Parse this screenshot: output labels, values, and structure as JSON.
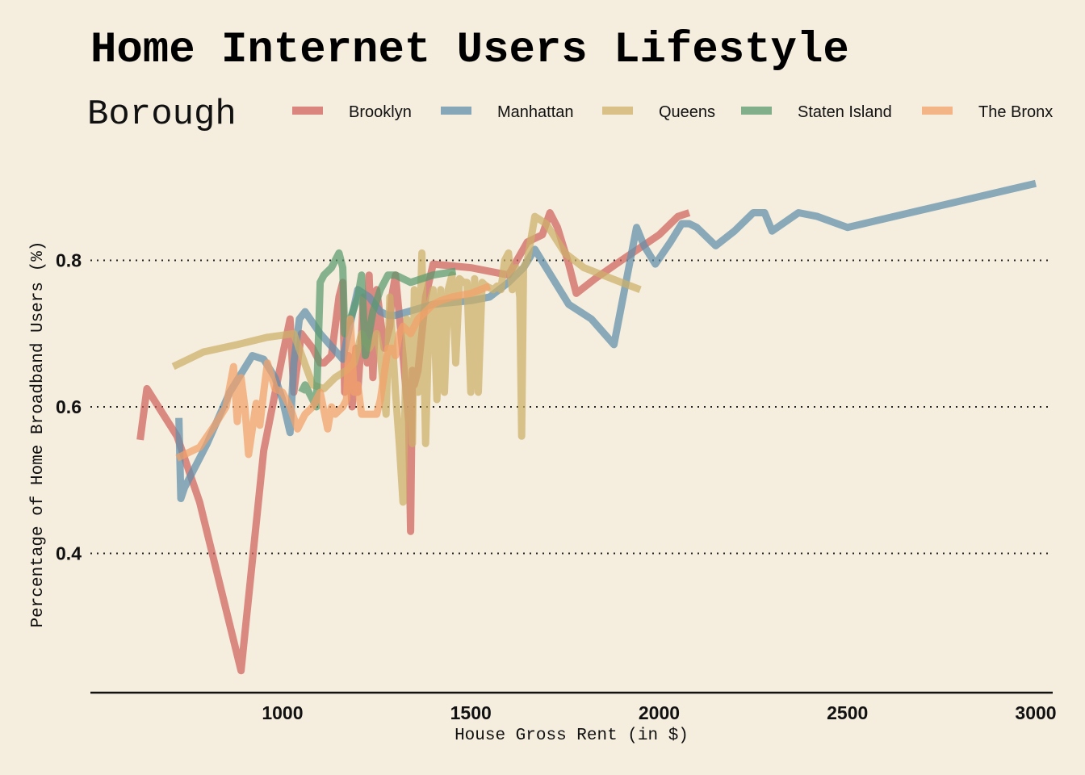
{
  "chart_data": {
    "type": "line",
    "title": "Home Internet Users Lifestyle",
    "legend_title": "Borough",
    "xlabel": "House Gross Rent (in $)",
    "ylabel": "Percentage of Home Broadband Users (%)",
    "xlim": [
      490,
      3045
    ],
    "ylim": [
      0.21,
      0.935
    ],
    "xticks": [
      1000,
      1500,
      2000,
      2500,
      3000
    ],
    "yticks": [
      0.4,
      0.6,
      0.8
    ],
    "xtick_labels": [
      "1000",
      "1500",
      "2000",
      "2500",
      "3000"
    ],
    "ytick_labels": [
      "0.4",
      "0.6",
      "0.8"
    ],
    "grid": "y-dotted",
    "legend_position": "top",
    "series": [
      {
        "name": "Brooklyn",
        "color": "#d0625d",
        "x": [
          622,
          640,
          720,
          780,
          890,
          950,
          1000,
          1020,
          1030,
          1050,
          1080,
          1100,
          1110,
          1130,
          1150,
          1160,
          1165,
          1175,
          1185,
          1195,
          1200,
          1210,
          1215,
          1225,
          1230,
          1240,
          1250,
          1270,
          1280,
          1285,
          1290,
          1300,
          1320,
          1335,
          1340,
          1345,
          1350,
          1360,
          1380,
          1400,
          1500,
          1600,
          1650,
          1690,
          1710,
          1730,
          1760,
          1780,
          1830,
          1900,
          2000,
          2050,
          2080
        ],
        "y": [
          0.555,
          0.625,
          0.56,
          0.47,
          0.24,
          0.54,
          0.67,
          0.72,
          0.62,
          0.7,
          0.68,
          0.66,
          0.66,
          0.67,
          0.75,
          0.77,
          0.62,
          0.67,
          0.6,
          0.68,
          0.62,
          0.7,
          0.75,
          0.66,
          0.78,
          0.64,
          0.76,
          0.68,
          0.7,
          0.71,
          0.75,
          0.78,
          0.67,
          0.58,
          0.43,
          0.65,
          0.63,
          0.65,
          0.75,
          0.795,
          0.79,
          0.78,
          0.825,
          0.835,
          0.865,
          0.845,
          0.795,
          0.755,
          0.775,
          0.8,
          0.835,
          0.86,
          0.865
        ]
      },
      {
        "name": "Manhattan",
        "color": "#5f8fab",
        "x": [
          725,
          730,
          740,
          800,
          860,
          920,
          950,
          980,
          1000,
          1020,
          1030,
          1045,
          1060,
          1100,
          1160,
          1170,
          1200,
          1230,
          1260,
          1280,
          1300,
          1400,
          1500,
          1550,
          1600,
          1640,
          1670,
          1700,
          1760,
          1820,
          1880,
          1940,
          1960,
          1990,
          2030,
          2060,
          2080,
          2100,
          2150,
          2200,
          2250,
          2280,
          2300,
          2370,
          2420,
          2500,
          3000
        ],
        "y": [
          0.585,
          0.475,
          0.49,
          0.55,
          0.62,
          0.67,
          0.665,
          0.64,
          0.61,
          0.565,
          0.66,
          0.72,
          0.73,
          0.7,
          0.665,
          0.69,
          0.76,
          0.75,
          0.73,
          0.725,
          0.725,
          0.74,
          0.745,
          0.75,
          0.77,
          0.79,
          0.815,
          0.79,
          0.74,
          0.72,
          0.685,
          0.845,
          0.82,
          0.795,
          0.825,
          0.85,
          0.85,
          0.845,
          0.82,
          0.84,
          0.865,
          0.865,
          0.84,
          0.865,
          0.86,
          0.845,
          0.905
        ]
      },
      {
        "name": "Queens",
        "color": "#cdb068",
        "x": [
          710,
          790,
          880,
          960,
          1030,
          1080,
          1110,
          1140,
          1170,
          1190,
          1210,
          1230,
          1250,
          1260,
          1275,
          1285,
          1300,
          1310,
          1320,
          1330,
          1335,
          1340,
          1345,
          1350,
          1360,
          1370,
          1380,
          1390,
          1400,
          1410,
          1420,
          1430,
          1440,
          1450,
          1460,
          1470,
          1480,
          1490,
          1500,
          1510,
          1520,
          1530,
          1540,
          1560,
          1570,
          1580,
          1590,
          1600,
          1610,
          1620,
          1630,
          1635,
          1640,
          1650,
          1670,
          1700,
          1750,
          1800,
          1850,
          1900,
          1950
        ],
        "y": [
          0.655,
          0.675,
          0.685,
          0.695,
          0.7,
          0.63,
          0.625,
          0.64,
          0.65,
          0.66,
          0.7,
          0.68,
          0.7,
          0.67,
          0.59,
          0.75,
          0.62,
          0.55,
          0.47,
          0.72,
          0.65,
          0.69,
          0.55,
          0.76,
          0.62,
          0.81,
          0.55,
          0.74,
          0.76,
          0.61,
          0.76,
          0.62,
          0.76,
          0.78,
          0.66,
          0.775,
          0.77,
          0.77,
          0.62,
          0.775,
          0.62,
          0.77,
          0.765,
          0.76,
          0.765,
          0.76,
          0.8,
          0.81,
          0.76,
          0.79,
          0.75,
          0.56,
          0.79,
          0.8,
          0.86,
          0.85,
          0.81,
          0.79,
          0.78,
          0.77,
          0.76
        ]
      },
      {
        "name": "Staten Island",
        "color": "#5a9a6e",
        "x": [
          1050,
          1060,
          1070,
          1080,
          1090,
          1100,
          1110,
          1130,
          1150,
          1160,
          1165,
          1170,
          1180,
          1190,
          1200,
          1210,
          1220,
          1230,
          1240,
          1260,
          1280,
          1300,
          1340,
          1400,
          1460
        ],
        "y": [
          0.62,
          0.63,
          0.62,
          0.61,
          0.6,
          0.77,
          0.78,
          0.79,
          0.81,
          0.79,
          0.7,
          0.71,
          0.72,
          0.735,
          0.75,
          0.78,
          0.67,
          0.7,
          0.73,
          0.76,
          0.78,
          0.78,
          0.77,
          0.78,
          0.785
        ]
      },
      {
        "name": "The Bronx",
        "color": "#f2a168",
        "x": [
          720,
          780,
          820,
          850,
          870,
          880,
          890,
          900,
          910,
          920,
          930,
          940,
          950,
          960,
          980,
          1000,
          1020,
          1040,
          1060,
          1080,
          1100,
          1120,
          1130,
          1140,
          1160,
          1170,
          1180,
          1190,
          1200,
          1210,
          1220,
          1230,
          1250,
          1260,
          1280,
          1290,
          1300,
          1310,
          1320,
          1340,
          1360,
          1380,
          1400,
          1420,
          1450,
          1500,
          1550
        ],
        "y": [
          0.53,
          0.545,
          0.575,
          0.6,
          0.655,
          0.58,
          0.64,
          0.6,
          0.535,
          0.57,
          0.605,
          0.575,
          0.62,
          0.66,
          0.625,
          0.62,
          0.6,
          0.57,
          0.59,
          0.6,
          0.62,
          0.57,
          0.6,
          0.59,
          0.6,
          0.61,
          0.72,
          0.62,
          0.63,
          0.59,
          0.59,
          0.59,
          0.59,
          0.61,
          0.68,
          0.68,
          0.67,
          0.7,
          0.71,
          0.7,
          0.72,
          0.73,
          0.74,
          0.745,
          0.75,
          0.755,
          0.765
        ]
      }
    ]
  }
}
